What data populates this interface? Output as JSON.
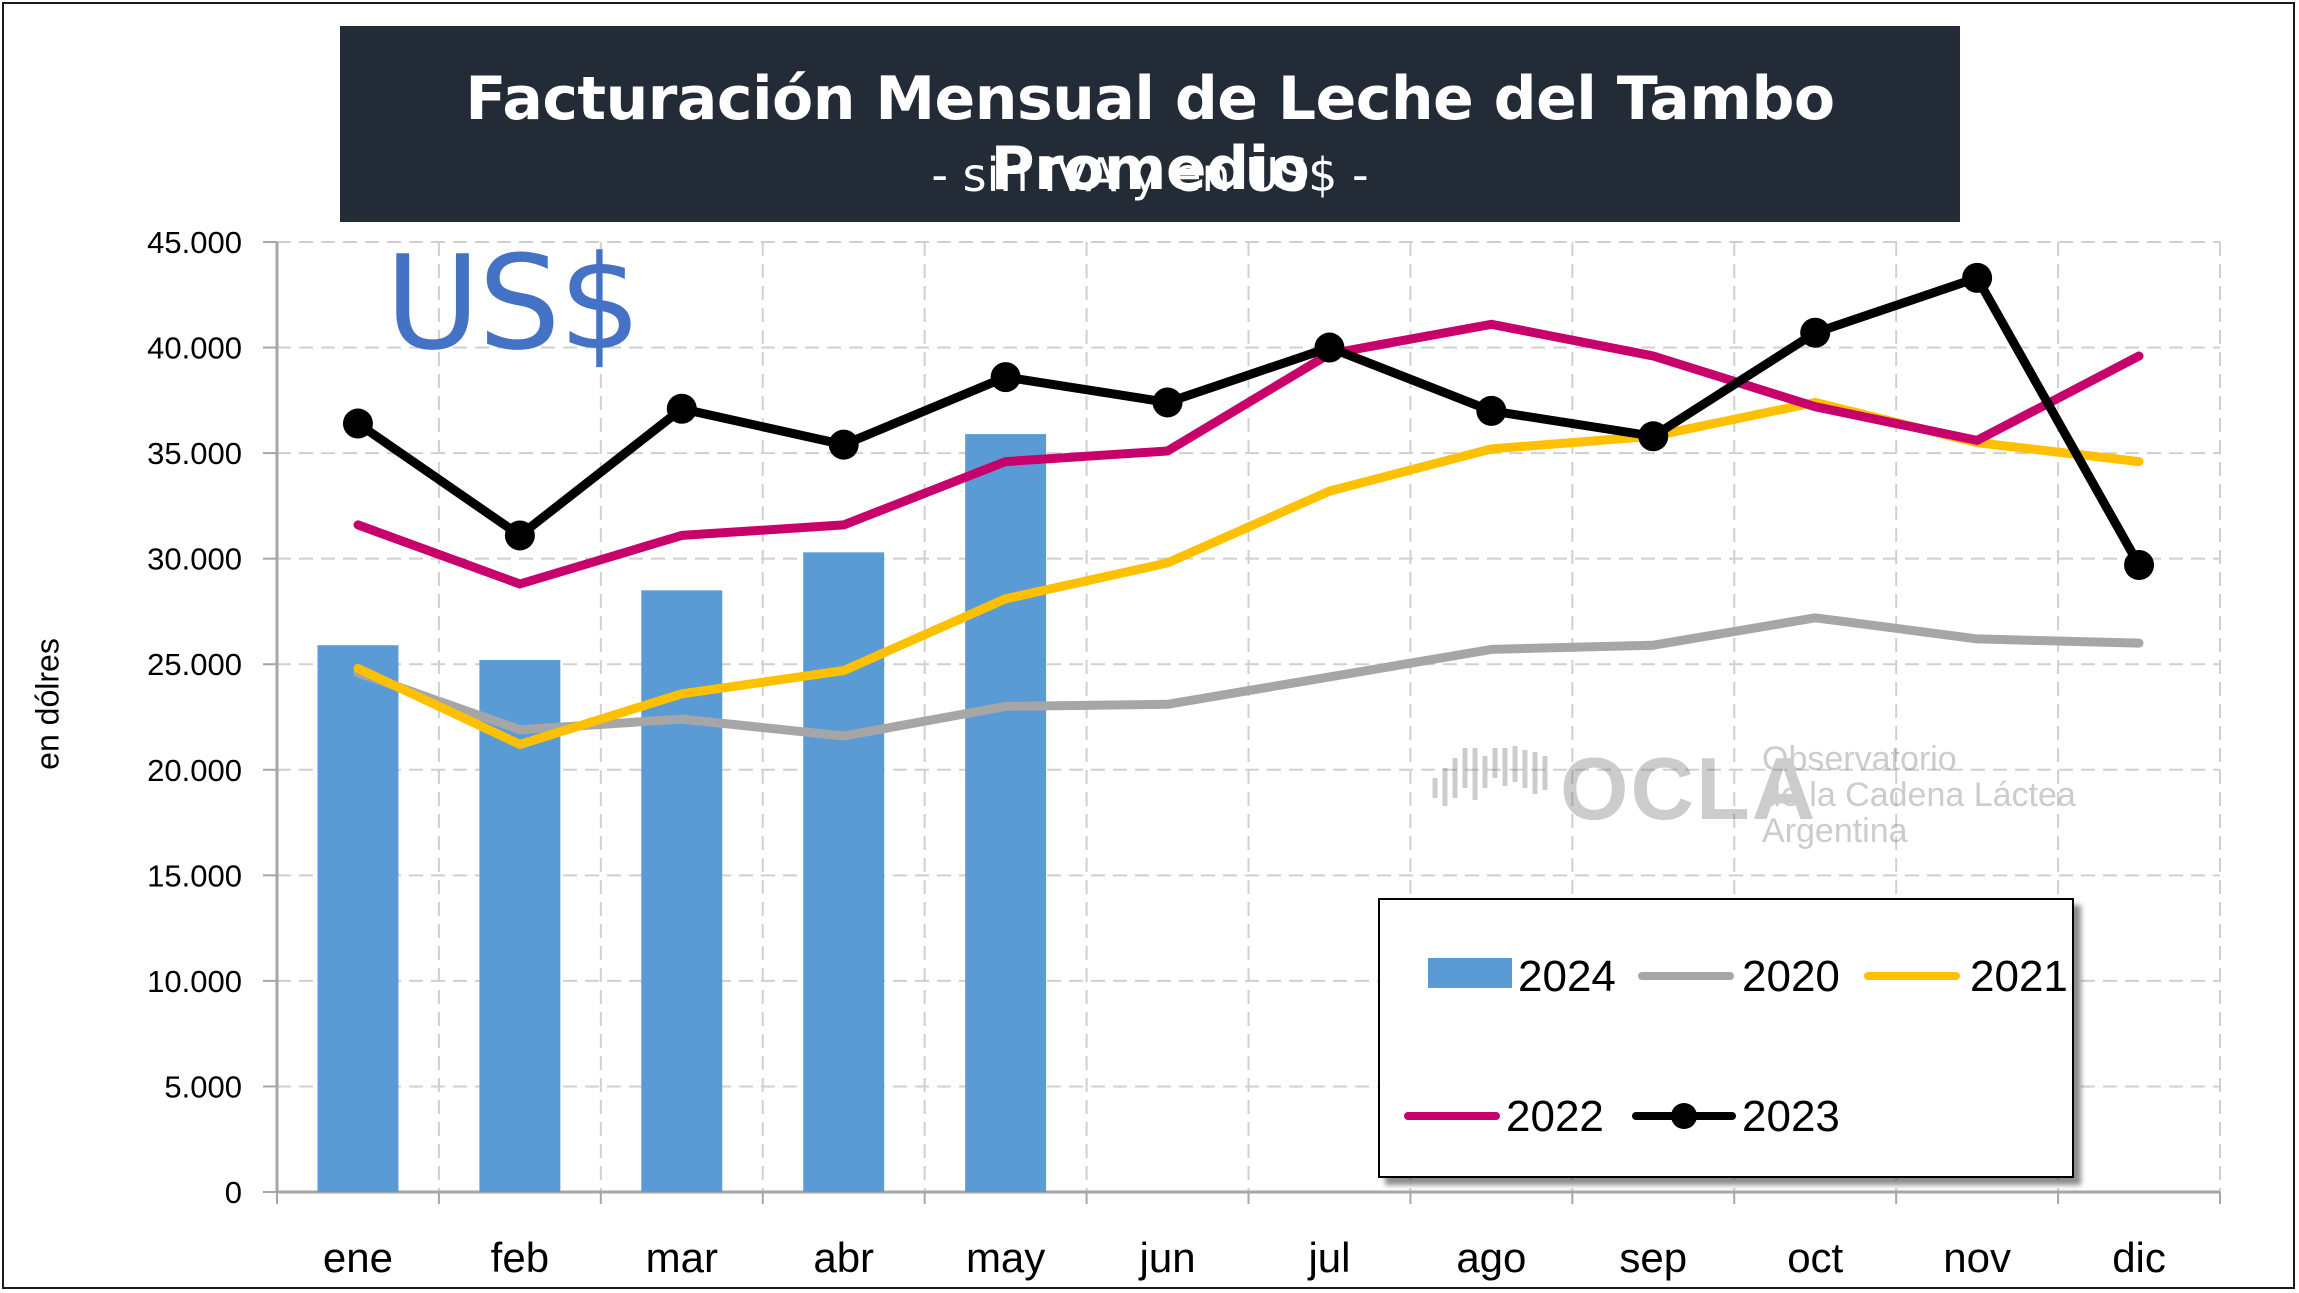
{
  "title": "Facturación Mensual de Leche del Tambo Promedio",
  "subtitle": "- sin IVA y en US$ -",
  "currency_label": "US$",
  "watermark": {
    "logo": "OCLA",
    "line1": "Observatorio",
    "line2": "de la Cadena Láctea",
    "line3": "Argentina"
  },
  "chart_data": {
    "type": "bar",
    "title": "Facturación Mensual de Leche del Tambo Promedio",
    "subtitle": "- sin IVA y en US$ -",
    "ylabel": "en dólres",
    "xlabel": "",
    "categories": [
      "ene",
      "feb",
      "mar",
      "abr",
      "may",
      "jun",
      "jul",
      "ago",
      "sep",
      "oct",
      "nov",
      "dic"
    ],
    "ylim": [
      0,
      45000
    ],
    "yticks": [
      0,
      5000,
      10000,
      15000,
      20000,
      25000,
      30000,
      35000,
      40000,
      45000
    ],
    "ytick_labels": [
      "0",
      "5.000",
      "10.000",
      "15.000",
      "20.000",
      "25.000",
      "30.000",
      "35.000",
      "40.000",
      "45.000"
    ],
    "grid": true,
    "legend_position": "bottom-right",
    "series": [
      {
        "name": "2024",
        "type": "bar",
        "color": "#5b9bd5",
        "values": [
          25900,
          25200,
          28500,
          30300,
          35900,
          null,
          null,
          null,
          null,
          null,
          null,
          null
        ]
      },
      {
        "name": "2020",
        "type": "line",
        "color": "#a6a6a6",
        "marker": false,
        "values": [
          24600,
          21900,
          22400,
          21600,
          23000,
          23100,
          24400,
          25700,
          25900,
          27200,
          26200,
          26000
        ]
      },
      {
        "name": "2021",
        "type": "line",
        "color": "#ffc000",
        "marker": false,
        "values": [
          24800,
          21200,
          23600,
          24700,
          28100,
          29800,
          33200,
          35200,
          35800,
          37400,
          35500,
          34600
        ]
      },
      {
        "name": "2022",
        "type": "line",
        "color": "#c8006b",
        "marker": false,
        "values": [
          31600,
          28800,
          31100,
          31600,
          34600,
          35100,
          39700,
          41100,
          39600,
          37200,
          35600,
          39600
        ]
      },
      {
        "name": "2023",
        "type": "line",
        "color": "#000000",
        "marker": true,
        "values": [
          36400,
          31100,
          37100,
          35400,
          38600,
          37400,
          40000,
          37000,
          35800,
          40700,
          43300,
          29700
        ]
      }
    ]
  }
}
